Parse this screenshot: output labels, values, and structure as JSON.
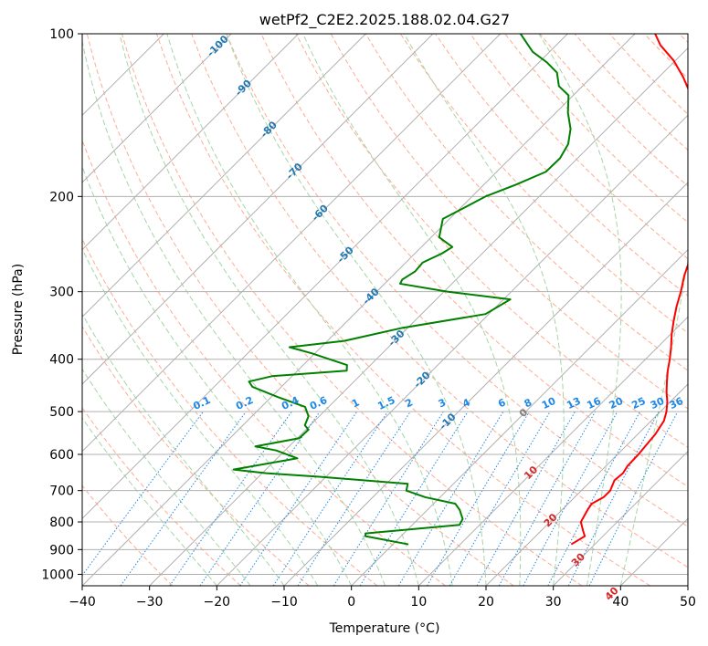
{
  "chart_data": {
    "type": "line",
    "title": "wetPf2_C2E2.2025.188.02.04.G27",
    "xlabel": "Temperature (°C)",
    "ylabel": "Pressure (hPa)",
    "xlim": [
      -40,
      50
    ],
    "ylim": [
      1050,
      100
    ],
    "y_scale": "log",
    "x_ticks": [
      -40,
      -30,
      -20,
      -10,
      0,
      10,
      20,
      30,
      40,
      50
    ],
    "y_ticks": [
      100,
      200,
      300,
      400,
      500,
      600,
      700,
      800,
      900,
      1000
    ],
    "grid": true,
    "skew_degrees": 45,
    "series": [
      {
        "color": "#ff0000",
        "points": [
          [
            26.5,
            880
          ],
          [
            27.3,
            850
          ],
          [
            26.2,
            830
          ],
          [
            24.6,
            800
          ],
          [
            23.8,
            760
          ],
          [
            23.5,
            740
          ],
          [
            24.3,
            720
          ],
          [
            24.3,
            700
          ],
          [
            23.4,
            670
          ],
          [
            23.6,
            650
          ],
          [
            23.2,
            630
          ],
          [
            23.1,
            600
          ],
          [
            22.6,
            550
          ],
          [
            21.9,
            520
          ],
          [
            20.9,
            500
          ],
          [
            19.6,
            480
          ],
          [
            18.0,
            460
          ],
          [
            16.5,
            440
          ],
          [
            15.0,
            420
          ],
          [
            13.6,
            400
          ],
          [
            12.0,
            380
          ],
          [
            10.2,
            360
          ],
          [
            8.5,
            340
          ],
          [
            6.8,
            320
          ],
          [
            5.2,
            300
          ],
          [
            3.3,
            280
          ],
          [
            1.6,
            260
          ],
          [
            -0.5,
            240
          ],
          [
            -2.5,
            222
          ],
          [
            -4.5,
            205
          ],
          [
            -6.4,
            190
          ],
          [
            -7.8,
            180
          ],
          [
            -10.0,
            170
          ],
          [
            -12.7,
            160
          ],
          [
            -15.3,
            150
          ],
          [
            -18.5,
            140
          ],
          [
            -22.5,
            130
          ],
          [
            -26.5,
            120
          ],
          [
            -30.3,
            112
          ],
          [
            -34.5,
            105
          ],
          [
            -37.0,
            100
          ]
        ]
      },
      {
        "color": "#008000",
        "points": [
          [
            2.3,
            880
          ],
          [
            -5.3,
            850
          ],
          [
            -5.7,
            840
          ],
          [
            7.0,
            810
          ],
          [
            6.6,
            790
          ],
          [
            4.8,
            760
          ],
          [
            3.2,
            740
          ],
          [
            -2.2,
            720
          ],
          [
            -6.0,
            700
          ],
          [
            -6.8,
            680
          ],
          [
            -21.0,
            660
          ],
          [
            -29.4,
            650
          ],
          [
            -34.8,
            640
          ],
          [
            -27.0,
            610
          ],
          [
            -31.3,
            590
          ],
          [
            -35.0,
            580
          ],
          [
            -29.7,
            560
          ],
          [
            -29.6,
            540
          ],
          [
            -30.8,
            530
          ],
          [
            -31.6,
            510
          ],
          [
            -33.5,
            490
          ],
          [
            -39.0,
            470
          ],
          [
            -44.3,
            450
          ],
          [
            -45.6,
            440
          ],
          [
            -43.0,
            430
          ],
          [
            -32.7,
            420
          ],
          [
            -33.5,
            410
          ],
          [
            -40.5,
            390
          ],
          [
            -44.7,
            380
          ],
          [
            -37.5,
            370
          ],
          [
            -30.8,
            350
          ],
          [
            -20.5,
            330
          ],
          [
            -19.0,
            310
          ],
          [
            -29.5,
            300
          ],
          [
            -37.7,
            290
          ],
          [
            -38.0,
            285
          ],
          [
            -37.3,
            275
          ],
          [
            -37.5,
            265
          ],
          [
            -36.0,
            255
          ],
          [
            -35.4,
            248
          ],
          [
            -38.8,
            238
          ],
          [
            -40.0,
            228
          ],
          [
            -41.0,
            220
          ],
          [
            -39.5,
            210
          ],
          [
            -38.0,
            200
          ],
          [
            -35.2,
            190
          ],
          [
            -32.7,
            180
          ],
          [
            -32.6,
            170
          ],
          [
            -33.5,
            160
          ],
          [
            -35.4,
            150
          ],
          [
            -38.2,
            140
          ],
          [
            -40.7,
            130
          ],
          [
            -43.5,
            125
          ],
          [
            -45.8,
            118
          ],
          [
            -48.8,
            113
          ],
          [
            -52.5,
            108
          ],
          [
            -57.0,
            100
          ]
        ]
      }
    ],
    "isotherm_labels": [
      "-100",
      "-90",
      "-80",
      "-70",
      "-60",
      "-50",
      "-40",
      "-30",
      "-20",
      "-10",
      "0",
      "10",
      "20",
      "30",
      "40"
    ],
    "mixing_ratio_labels": [
      "0.1",
      "0.2",
      "0.4",
      "0.6",
      "1",
      "1.5",
      "2",
      "3",
      "4",
      "6",
      "8",
      "10",
      "13",
      "16",
      "20",
      "25",
      "30",
      "36"
    ]
  }
}
